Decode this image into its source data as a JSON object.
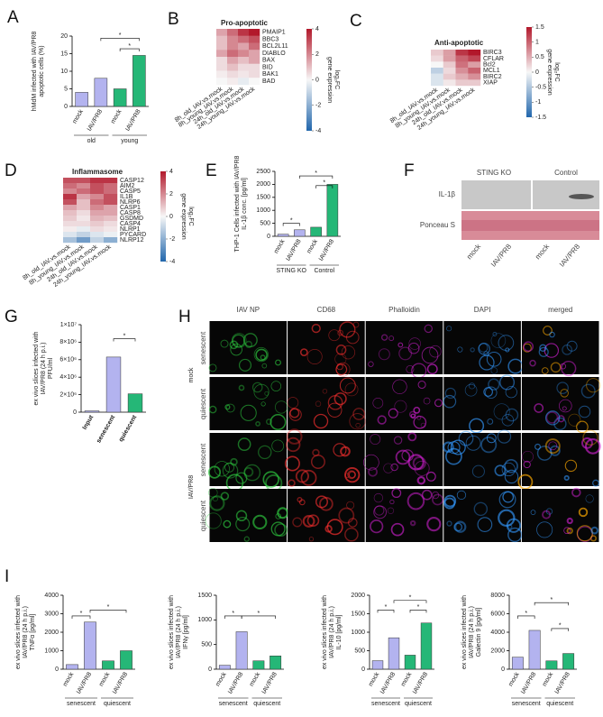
{
  "panel_letters": [
    "A",
    "B",
    "C",
    "D",
    "E",
    "F",
    "G",
    "H",
    "I"
  ],
  "chart_data": [
    {
      "type": "bar",
      "ylabel": [
        "hMdM infected with IAV/PR8",
        "apoptotic cells (%)"
      ],
      "categories": [
        "mock",
        "IAV/PR8",
        "mock",
        "IAV/PR8"
      ],
      "groups": [
        "old",
        "young"
      ],
      "values": [
        4,
        8,
        5,
        14.5
      ],
      "colors": [
        "#b3b3ef",
        "#b3b3ef",
        "#25b777",
        "#25b777"
      ],
      "ylim": [
        0,
        20
      ],
      "yticks": [
        0,
        5,
        10,
        15,
        20
      ],
      "significance": [
        "*",
        "*"
      ]
    },
    {
      "type": "heatmap",
      "title": "Pro-apoptotic",
      "rows": [
        "PMAIP1",
        "BBC3",
        "BCL2L11",
        "DIABLO",
        "BAX",
        "BID",
        "BAK1",
        "BAD"
      ],
      "columns": [
        "8h_old_IAV.vs.mock",
        "8h_young_IAV.vs.mock",
        "24h_old_IAV.vs.mock",
        "24h_young_IAV.vs.mock"
      ],
      "z": [
        [
          1.5,
          2.5,
          3.5,
          4
        ],
        [
          1,
          2,
          2.5,
          3
        ],
        [
          1,
          2,
          1.5,
          2.5
        ],
        [
          1.5,
          2.5,
          2,
          1.5
        ],
        [
          0.5,
          1.5,
          1,
          1.5
        ],
        [
          0.5,
          1,
          0.5,
          0.5
        ],
        [
          0.2,
          0.5,
          0.3,
          0.5
        ],
        [
          0,
          0.2,
          -0.3,
          0
        ]
      ],
      "colormap": [
        "#2166ac",
        "#f7f7f7",
        "#b2182b"
      ],
      "zlim": [
        -4,
        4
      ],
      "zticks": [
        4,
        2,
        0,
        -2,
        -4
      ],
      "legend_title": [
        "gene expression",
        "log₂FC"
      ]
    },
    {
      "type": "heatmap",
      "title": "Anti-apoptotic",
      "rows": [
        "BIRC3",
        "CFLAR",
        "Bcl2",
        "MCL1",
        "BIRC2",
        "XIAP"
      ],
      "columns": [
        "8h_old_IAV.vs.mock",
        "8h_young_IAV.vs.mock",
        "24h_old_IAV.vs.mock",
        "24h_young_IAV.vs.mock"
      ],
      "z": [
        [
          0.3,
          0.6,
          1.3,
          1.5
        ],
        [
          0.2,
          0.6,
          1,
          1.2
        ],
        [
          0,
          0.3,
          0.9,
          0.6
        ],
        [
          -0.4,
          0.2,
          0.7,
          1
        ],
        [
          -0.2,
          0.3,
          0.5,
          0.7
        ],
        [
          -0.2,
          0.1,
          0.3,
          0.3
        ]
      ],
      "colormap": [
        "#2166ac",
        "#f7f7f7",
        "#b2182b"
      ],
      "zlim": [
        -1.5,
        1.5
      ],
      "zticks": [
        1.5,
        1,
        0.5,
        0,
        -0.5,
        -1,
        -1.5
      ],
      "legend_title": [
        "gene expression",
        "log₂FC"
      ]
    },
    {
      "type": "heatmap",
      "title": "Inflammasome",
      "rows": [
        "CASP12",
        "AIM2",
        "CASP5",
        "IL1B",
        "NLRP6",
        "CASP1",
        "CASP8",
        "GSDMD",
        "CASP4",
        "NLRP1",
        "PYCARD",
        "NLRP12"
      ],
      "columns": [
        "8h_old_IAV.vs.mock",
        "8h_young_IAV.vs.mock",
        "24h_old_IAV.vs.mock",
        "24h_young_IAV.vs.mock"
      ],
      "z": [
        [
          3,
          3,
          3.5,
          3.5
        ],
        [
          2.5,
          2,
          3,
          2.5
        ],
        [
          2,
          2.5,
          3,
          2.5
        ],
        [
          3.5,
          1.5,
          2,
          3
        ],
        [
          3,
          1,
          2.5,
          3
        ],
        [
          1.5,
          1,
          2,
          1.5
        ],
        [
          1,
          0.5,
          1.5,
          1.5
        ],
        [
          0.8,
          0.3,
          1.2,
          1
        ],
        [
          0.5,
          0.5,
          0.8,
          0.5
        ],
        [
          0.2,
          -0.3,
          0.5,
          0.3
        ],
        [
          -0.5,
          -1,
          -0.5,
          -0.2
        ],
        [
          -1.5,
          -2.5,
          -1,
          -2
        ]
      ],
      "colormap": [
        "#2166ac",
        "#f7f7f7",
        "#b2182b"
      ],
      "zlim": [
        -4,
        4
      ],
      "zticks": [
        4,
        2,
        0,
        -2,
        -4
      ],
      "legend_title": [
        "gene expression",
        "log₂FC"
      ]
    },
    {
      "type": "bar",
      "ylabel": [
        "THP-1 Cells infected with IAV/PR8",
        "IL-1β conc. [pg/ml]"
      ],
      "categories": [
        "mock",
        "IAV/PR8",
        "mock",
        "IAV/PR8"
      ],
      "groups": [
        "STING KO",
        "Control"
      ],
      "values": [
        80,
        250,
        350,
        2000
      ],
      "colors": [
        "#b3b3ef",
        "#b3b3ef",
        "#25b777",
        "#25b777"
      ],
      "ylim": [
        0,
        2500
      ],
      "yticks": [
        0,
        500,
        1000,
        1500,
        2000,
        2500
      ],
      "significance": [
        "*",
        "*",
        "*"
      ]
    },
    {
      "type": "bar",
      "ylabel": [
        "ex vivo slices infected with",
        "IAV/PR8 (24 h p.i.)",
        "PFU/ml"
      ],
      "categories": [
        "Input",
        "senescent",
        "quiescent"
      ],
      "values": [
        150000,
        6300000,
        2100000
      ],
      "colors": [
        "#b3b3ef",
        "#b3b3ef",
        "#25b777"
      ],
      "ylim": [
        0,
        10000000
      ],
      "yticks": [
        0,
        {
          "value": 2000000,
          "label": "2×10⁶"
        },
        {
          "value": 4000000,
          "label": "4×10⁶"
        },
        {
          "value": 6000000,
          "label": "6×10⁶"
        },
        {
          "value": 8000000,
          "label": "8×10⁶"
        },
        {
          "value": 10000000,
          "label": "1×10⁷"
        }
      ],
      "significance": [
        "*"
      ]
    },
    {
      "type": "bar",
      "ylabel": [
        "ex vivo slices infected with",
        "IAV/PR8 (24 h p.i.)",
        "TNFα [pg/ml]"
      ],
      "categories": [
        "mock",
        "IAV/PR8",
        "mock",
        "IAV/PR8"
      ],
      "groups": [
        "senescent",
        "quiescent"
      ],
      "values": [
        250,
        2550,
        450,
        1000
      ],
      "colors": [
        "#b3b3ef",
        "#b3b3ef",
        "#25b777",
        "#25b777"
      ],
      "ylim": [
        0,
        4000
      ],
      "yticks": [
        0,
        1000,
        2000,
        3000,
        4000
      ],
      "significance": [
        "*",
        "*"
      ]
    },
    {
      "type": "bar",
      "ylabel": [
        "ex vivo slices infected with",
        "IAV/PR8 (24 h p.i.)",
        "IFNγ [pg/ml]"
      ],
      "categories": [
        "mock",
        "IAV/PR8",
        "mock",
        "IAV/PR8"
      ],
      "groups": [
        "senescent",
        "quiescent"
      ],
      "values": [
        80,
        760,
        170,
        270
      ],
      "colors": [
        "#b3b3ef",
        "#b3b3ef",
        "#25b777",
        "#25b777"
      ],
      "ylim": [
        0,
        1500
      ],
      "yticks": [
        0,
        500,
        1000,
        1500
      ],
      "significance": [
        "*",
        "*"
      ]
    },
    {
      "type": "bar",
      "ylabel": [
        "ex vivo slices infected with",
        "IAV/PR8 (24 h p.i.)",
        "IL-10 [pg/ml]"
      ],
      "categories": [
        "mock",
        "IAV/PR8",
        "mock",
        "IAV/PR8"
      ],
      "groups": [
        "senescent",
        "quiescent"
      ],
      "values": [
        230,
        850,
        380,
        1250
      ],
      "colors": [
        "#b3b3ef",
        "#b3b3ef",
        "#25b777",
        "#25b777"
      ],
      "ylim": [
        0,
        2000
      ],
      "yticks": [
        0,
        500,
        1000,
        1500,
        2000
      ],
      "significance": [
        "*",
        "*",
        "*"
      ]
    },
    {
      "type": "bar",
      "ylabel": [
        "ex vivo slices infected with",
        "IAV/PR8 (24 h p.i.)",
        "Galectin 9 [pg/ml]"
      ],
      "categories": [
        "mock",
        "IAV/PR8",
        "mock",
        "IAV/PR8"
      ],
      "groups": [
        "senescent",
        "quiescent"
      ],
      "values": [
        1300,
        4200,
        900,
        1700
      ],
      "colors": [
        "#b3b3ef",
        "#b3b3ef",
        "#25b777",
        "#25b777"
      ],
      "ylim": [
        0,
        8000
      ],
      "yticks": [
        0,
        2000,
        4000,
        6000,
        8000
      ],
      "significance": [
        "*",
        "*",
        "*"
      ]
    }
  ],
  "panel_F": {
    "lane_groups": [
      "STING KO",
      "Control"
    ],
    "rows": [
      "IL-1β",
      "Ponceau S"
    ],
    "lanes": [
      "mock",
      "IAV/PR8",
      "mock",
      "IAV/PR8"
    ]
  },
  "panel_H": {
    "columns": [
      "IAV NP",
      "CD68",
      "Phalloidin",
      "DAPI",
      "merged"
    ],
    "conditions": [
      "mock",
      "IAV/PR8"
    ],
    "states": [
      "senescent",
      "quiescent",
      "senescent",
      "quiescent"
    ]
  }
}
